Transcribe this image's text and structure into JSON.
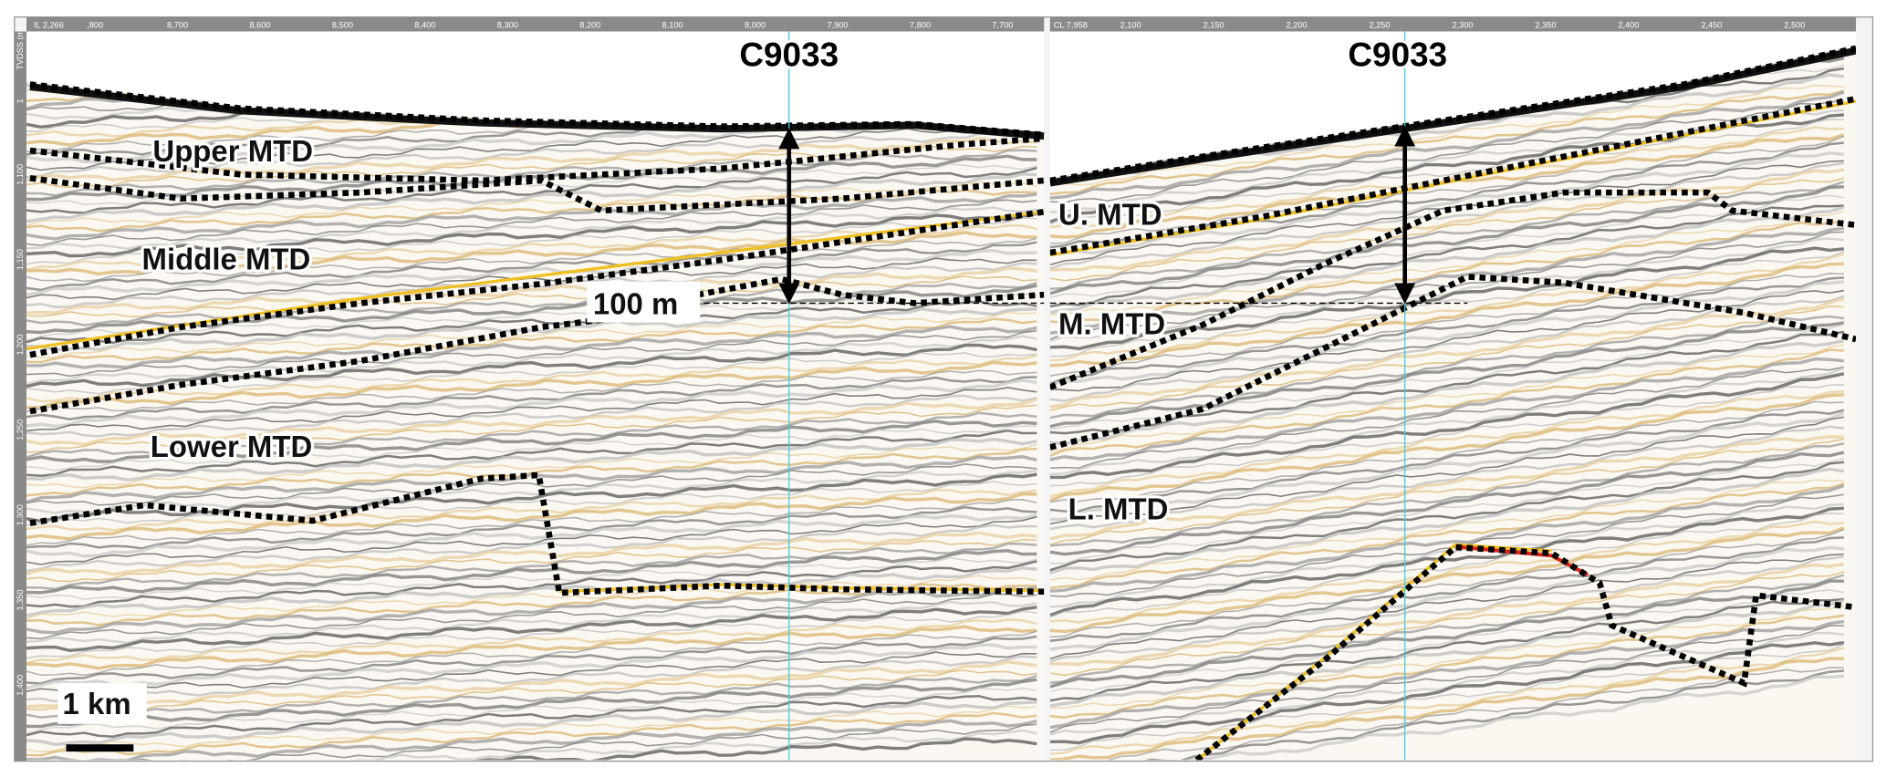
{
  "depth_axis": {
    "title": "TVDSS (m)",
    "ticks": [
      "1",
      "1,100",
      "1,150",
      "1,200",
      "1,250",
      "1,300",
      "1,350",
      "1,400"
    ]
  },
  "left_panel": {
    "line_label": "IL 2,266",
    "top_ticks": [
      ",800",
      "8,700",
      "8,600",
      "8,500",
      "8,400",
      "8,300",
      "8,200",
      "8,100",
      "8,000",
      "7,900",
      "7,800",
      "7,700"
    ],
    "well": "C9033",
    "units": [
      "Upper MTD",
      "Middle MTD",
      "Lower MTD"
    ],
    "thickness": "100 m",
    "scale_bar": "1 km"
  },
  "right_panel": {
    "line_label": "CL 7,958",
    "top_ticks": [
      "2,100",
      "2,150",
      "2,200",
      "2,250",
      "2,300",
      "2,350",
      "2,400",
      "2,450",
      "2,500"
    ],
    "well": "C9033",
    "units": [
      "U. MTD",
      "M. MTD",
      "L. MTD"
    ]
  }
}
